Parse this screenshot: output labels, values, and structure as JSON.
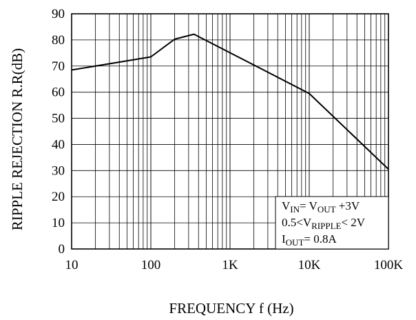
{
  "chart_data": {
    "type": "line",
    "xlabel": "FREQUENCY  f (Hz)",
    "ylabel": "RIPPLE REJECTION   R.R(dB)",
    "x_scale": "log",
    "xlim": [
      10,
      100000
    ],
    "ylim": [
      0,
      90
    ],
    "grid": true,
    "x_ticks": [
      {
        "value": 10,
        "label": "10"
      },
      {
        "value": 100,
        "label": "100"
      },
      {
        "value": 1000,
        "label": "1K"
      },
      {
        "value": 10000,
        "label": "10K"
      },
      {
        "value": 100000,
        "label": "100K"
      }
    ],
    "y_ticks": [
      0,
      10,
      20,
      30,
      40,
      50,
      60,
      70,
      80,
      90
    ],
    "series": [
      {
        "x": [
          10,
          100,
          200,
          350,
          10000,
          100000
        ],
        "y": [
          68.5,
          73.5,
          80.3,
          82.2,
          59.5,
          30.5
        ]
      }
    ],
    "annotation": {
      "lines": [
        [
          {
            "t": "V"
          },
          {
            "t": "IN",
            "sub": true
          },
          {
            "t": "= V"
          },
          {
            "t": "OUT",
            "sub": true
          },
          {
            "t": " +3V"
          }
        ],
        [
          {
            "t": "0.5<V"
          },
          {
            "t": "RIPPLE",
            "sub": true
          },
          {
            "t": "< 2V"
          }
        ],
        [
          {
            "t": "I"
          },
          {
            "t": "OUT",
            "sub": true
          },
          {
            "t": "= 0.8A"
          }
        ]
      ]
    }
  }
}
